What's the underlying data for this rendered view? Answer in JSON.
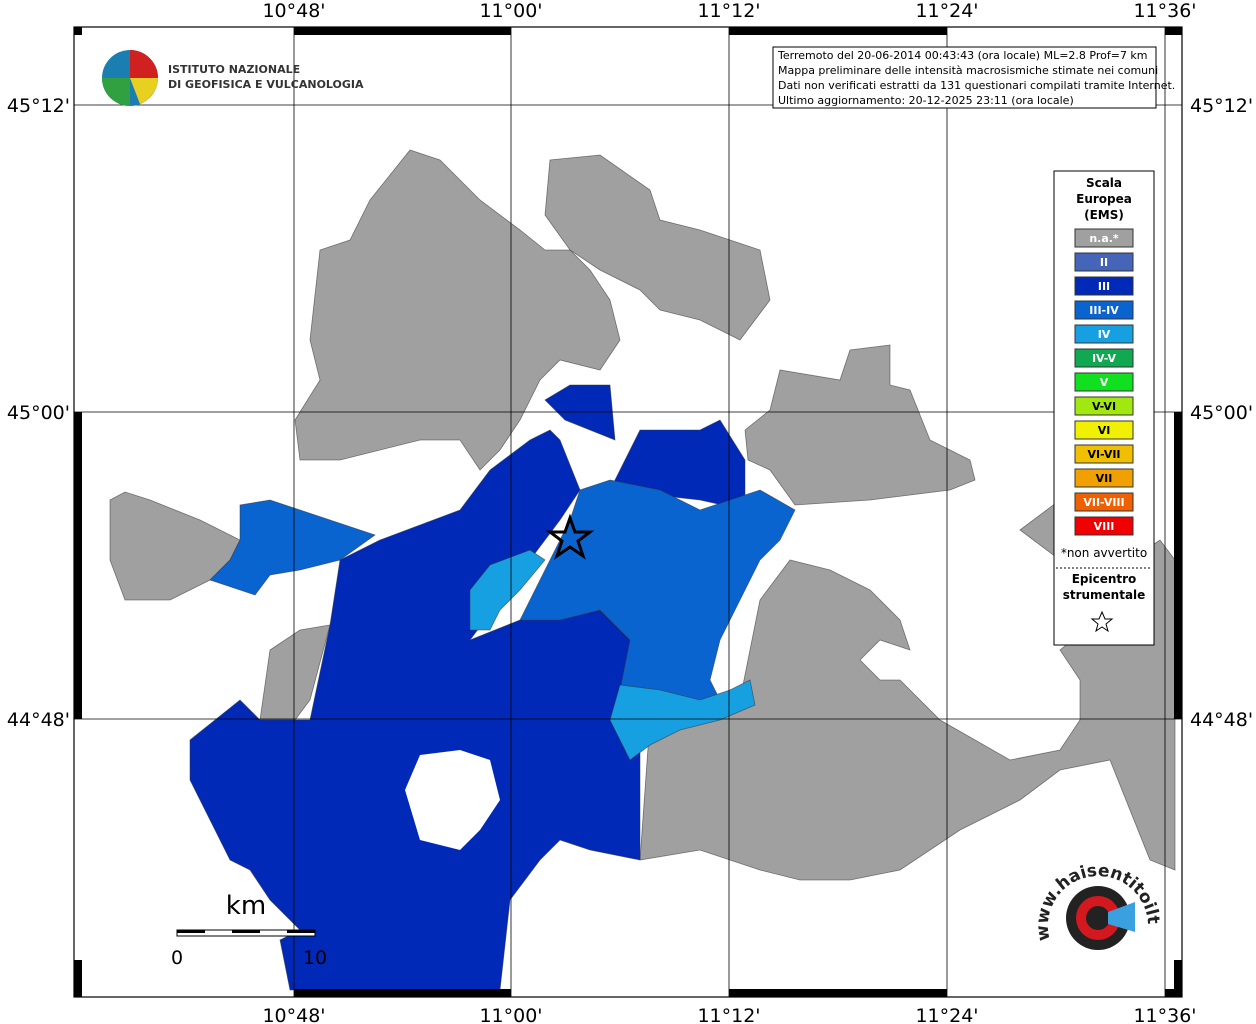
{
  "map": {
    "info": [
      "Terremoto del 20-06-2014 00:43:43 (ora locale) ML=2.8 Prof=7 km",
      "Mappa preliminare delle intensità macrosismiche stimate nei comuni",
      "Dati non verificati estratti da 131 questionari compilati tramite Internet.",
      "Ultimo aggiornamento: 20-12-2025 23:11 (ora locale)"
    ],
    "institute": [
      "ISTITUTO NAZIONALE",
      "DI GEOFISICA E VULCANOLOGIA"
    ],
    "lon_labels": [
      "10°48'",
      "11°00'",
      "11°12'",
      "11°24'",
      "11°36'"
    ],
    "lat_labels": [
      "45°12'",
      "45°00'",
      "44°48'"
    ],
    "scale": {
      "unit": "km",
      "start": "0",
      "end": "10"
    },
    "legend": {
      "title": [
        "Scala",
        "Europea",
        "(EMS)"
      ],
      "items": [
        {
          "label": "n.a.*",
          "color": "#a0a0a0"
        },
        {
          "label": "II",
          "color": "#4565b8"
        },
        {
          "label": "III",
          "color": "#0029b8"
        },
        {
          "label": "III-IV",
          "color": "#0a64d0"
        },
        {
          "label": "IV",
          "color": "#16a0e2"
        },
        {
          "label": "IV-V",
          "color": "#10a850"
        },
        {
          "label": "V",
          "color": "#10e020"
        },
        {
          "label": "V-VI",
          "color": "#a0e810"
        },
        {
          "label": "VI",
          "color": "#f0f000"
        },
        {
          "label": "VI-VII",
          "color": "#f0c000"
        },
        {
          "label": "VII",
          "color": "#f0a000"
        },
        {
          "label": "VII-VIII",
          "color": "#f06000"
        },
        {
          "label": "VIII",
          "color": "#f00000"
        }
      ],
      "note": "*non avvertito",
      "epicenter": [
        "Epicentro",
        "strumentale"
      ]
    },
    "site": "www.haisentitoilterremoto.it"
  }
}
